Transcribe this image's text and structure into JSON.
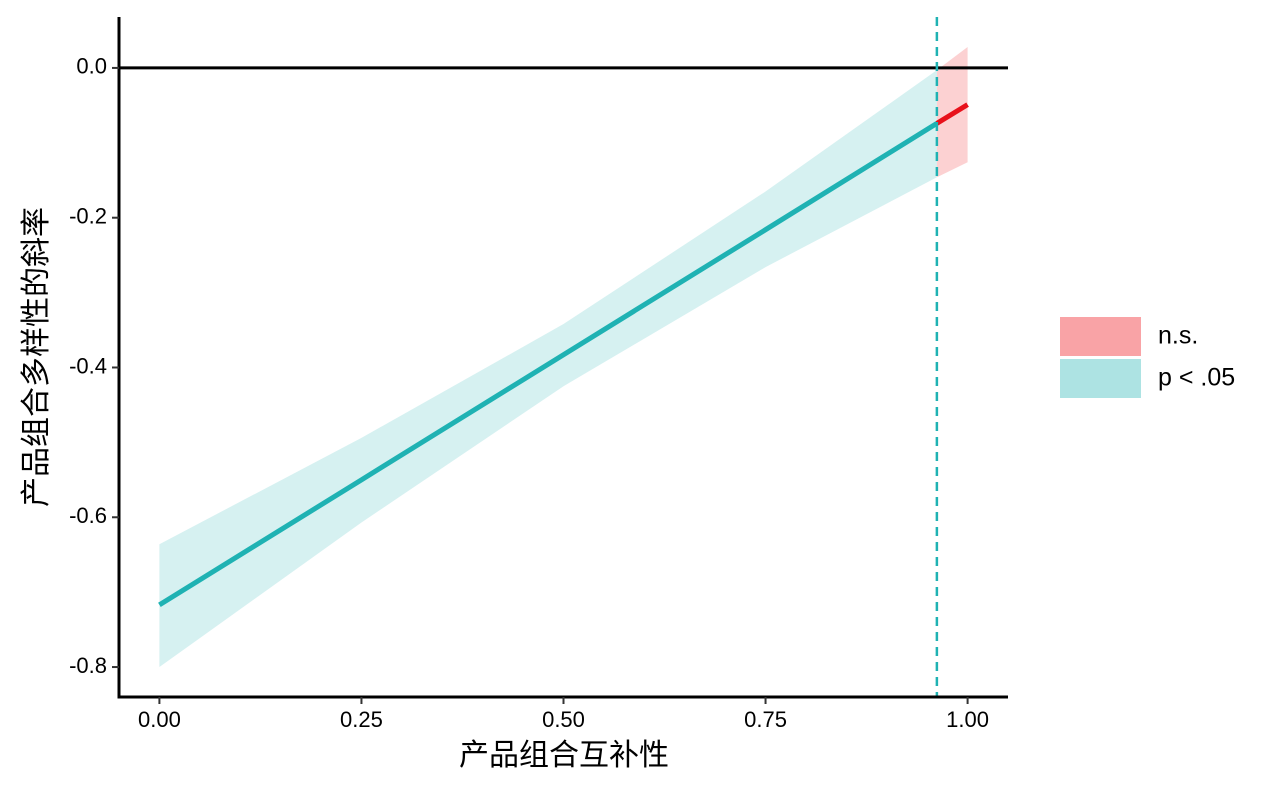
{
  "chart_data": {
    "type": "johnson-neyman",
    "x_label": "产品组合互补性",
    "y_label": "产品组合多样性的斜率",
    "xlim": [
      -0.05,
      1.05
    ],
    "ylim": [
      -0.84,
      0.068
    ],
    "xticks": [
      {
        "value": 0,
        "label": "0.00"
      },
      {
        "value": 0.25,
        "label": "0.25"
      },
      {
        "value": 0.5,
        "label": "0.50"
      },
      {
        "value": 0.75,
        "label": "0.75"
      },
      {
        "value": 1,
        "label": "1.00"
      }
    ],
    "yticks": [
      {
        "value": 0,
        "label": "0.0"
      },
      -0.2,
      -0.4,
      -0.6,
      -0.8
    ],
    "hline": 0,
    "jn_point": 0.962,
    "legend": "right",
    "series": [
      {
        "name": "n.s.",
        "color": "#e8111b",
        "band_color": "#f9a3a6",
        "x": [
          0.962,
          1.0
        ],
        "values": [
          -0.074,
          -0.049
        ],
        "lower": [
          -0.146,
          -0.126
        ],
        "upper": [
          -0.003,
          0.028
        ]
      },
      {
        "name": "p < .05",
        "color": "#1fb2b3",
        "band_color": "#ade3e3",
        "x": [
          0,
          0.25,
          0.5,
          0.75,
          0.962
        ],
        "values": [
          -0.717,
          -0.55,
          -0.383,
          -0.216,
          -0.074
        ],
        "lower": [
          -0.8,
          -0.607,
          -0.425,
          -0.266,
          -0.146
        ],
        "upper": [
          -0.636,
          -0.494,
          -0.342,
          -0.165,
          -0.003
        ]
      }
    ]
  }
}
